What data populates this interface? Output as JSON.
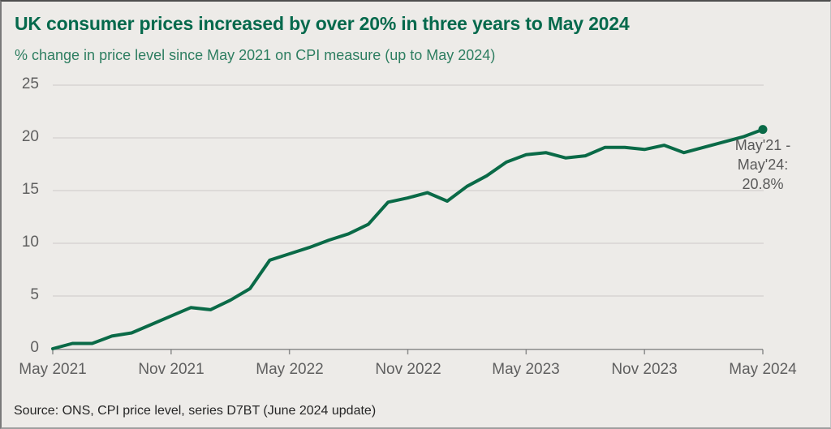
{
  "colors": {
    "background": "#edebe8",
    "title": "#05694c",
    "subtitle": "#2e7e61",
    "line": "#0a6a47",
    "grid": "#d8d5d2",
    "axis_line": "#8c8c8c",
    "axis_text": "#5f5f5f",
    "annotation_text": "#595959",
    "source_text": "#262626"
  },
  "chart_data": {
    "type": "line",
    "title": "UK consumer prices increased by over 20% in three years to May 2024",
    "subtitle": "% change in price level since May 2021 on CPI measure (up to May 2024)",
    "source": "Source: ONS, CPI price level, series D7BT (June 2024 update)",
    "annotation_lines": [
      "May'21 -",
      "May'24:",
      "20.8%"
    ],
    "x": [
      "May 2021",
      "Jun 2021",
      "Jul 2021",
      "Aug 2021",
      "Sep 2021",
      "Oct 2021",
      "Nov 2021",
      "Dec 2021",
      "Jan 2022",
      "Feb 2022",
      "Mar 2022",
      "Apr 2022",
      "May 2022",
      "Jun 2022",
      "Jul 2022",
      "Aug 2022",
      "Sep 2022",
      "Oct 2022",
      "Nov 2022",
      "Dec 2022",
      "Jan 2023",
      "Feb 2023",
      "Mar 2023",
      "Apr 2023",
      "May 2023",
      "Jun 2023",
      "Jul 2023",
      "Aug 2023",
      "Sep 2023",
      "Oct 2023",
      "Nov 2023",
      "Dec 2023",
      "Jan 2024",
      "Feb 2024",
      "Mar 2024",
      "Apr 2024",
      "May 2024"
    ],
    "values": [
      0.0,
      0.5,
      0.5,
      1.2,
      1.5,
      2.3,
      3.1,
      3.9,
      3.7,
      4.6,
      5.7,
      8.4,
      9.0,
      9.6,
      10.3,
      10.9,
      11.8,
      13.9,
      14.3,
      14.8,
      14.0,
      15.4,
      16.4,
      17.7,
      18.4,
      18.6,
      18.1,
      18.3,
      19.1,
      19.1,
      18.9,
      19.3,
      18.6,
      19.1,
      19.6,
      20.1,
      20.8
    ],
    "end_value": "20.8%",
    "xticks": [
      "May 2021",
      "Nov 2021",
      "May 2022",
      "Nov 2022",
      "May 2023",
      "Nov 2023",
      "May 2024"
    ],
    "yticks": [
      0,
      5,
      10,
      15,
      20,
      25
    ],
    "ylim": [
      0,
      25
    ],
    "xlabel": "",
    "ylabel": "% change in price level since May 2021",
    "grid": "horizontal",
    "legend": "none"
  }
}
